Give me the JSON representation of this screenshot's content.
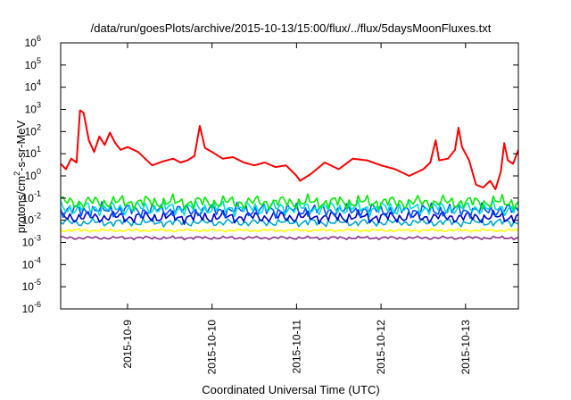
{
  "chart_data": {
    "type": "line",
    "title": "/data/run/goesPlots/archive/2015-10-13/15:00/flux/../flux/5daysMoonFluxes.txt",
    "xlabel": "Coordinated Universal Time (UTC)",
    "ylabel": {
      "base": "protons/cm",
      "sup": "2",
      "rest": "-s-sr-MeV"
    },
    "y_scale": "log",
    "ylim": [
      1e-06,
      1000000.0
    ],
    "xlim": [
      "2015-10-08T05:00",
      "2015-10-13T15:00"
    ],
    "grid": false,
    "legend": "none",
    "x_ticks": [
      {
        "value": "2015-10-09",
        "label": "2015-10-9"
      },
      {
        "value": "2015-10-10",
        "label": "2015-10-10"
      },
      {
        "value": "2015-10-11",
        "label": "2015-10-11"
      },
      {
        "value": "2015-10-12",
        "label": "2015-10-12"
      },
      {
        "value": "2015-10-13",
        "label": "2015-10-13"
      }
    ],
    "y_ticks": [
      {
        "exp": -6,
        "base": "10",
        "sup": "-6"
      },
      {
        "exp": -5,
        "base": "10",
        "sup": "-5"
      },
      {
        "exp": -4,
        "base": "10",
        "sup": "-4"
      },
      {
        "exp": -3,
        "base": "10",
        "sup": "-3"
      },
      {
        "exp": -2,
        "base": "10",
        "sup": "-2"
      },
      {
        "exp": -1,
        "base": "10",
        "sup": "-1"
      },
      {
        "exp": 0,
        "base": "10",
        "sup": "0"
      },
      {
        "exp": 1,
        "base": "10",
        "sup": "1"
      },
      {
        "exp": 2,
        "base": "10",
        "sup": "2"
      },
      {
        "exp": 3,
        "base": "10",
        "sup": "3"
      },
      {
        "exp": 4,
        "base": "10",
        "sup": "4"
      },
      {
        "exp": 5,
        "base": "10",
        "sup": "5"
      },
      {
        "exp": 6,
        "base": "10",
        "sup": "6"
      }
    ],
    "series": [
      {
        "color": "#ff0000",
        "points": [
          [
            "2015-10-08T05:00",
            3.5
          ],
          [
            "2015-10-08T06:30",
            2.0
          ],
          [
            "2015-10-08T08:00",
            6.0
          ],
          [
            "2015-10-08T09:30",
            4.0
          ],
          [
            "2015-10-08T10:30",
            900
          ],
          [
            "2015-10-08T11:30",
            700
          ],
          [
            "2015-10-08T13:00",
            40
          ],
          [
            "2015-10-08T14:30",
            12
          ],
          [
            "2015-10-08T16:00",
            60
          ],
          [
            "2015-10-08T17:30",
            25
          ],
          [
            "2015-10-08T19:00",
            90
          ],
          [
            "2015-10-08T20:30",
            30
          ],
          [
            "2015-10-08T22:00",
            15
          ],
          [
            "2015-10-09T00:00",
            20
          ],
          [
            "2015-10-09T03:00",
            12
          ],
          [
            "2015-10-09T05:00",
            6.0
          ],
          [
            "2015-10-09T07:00",
            3.0
          ],
          [
            "2015-10-09T10:00",
            4.5
          ],
          [
            "2015-10-09T13:00",
            6.0
          ],
          [
            "2015-10-09T15:00",
            4.0
          ],
          [
            "2015-10-09T17:00",
            5.0
          ],
          [
            "2015-10-09T19:00",
            8.0
          ],
          [
            "2015-10-09T20:30",
            180
          ],
          [
            "2015-10-09T22:00",
            18
          ],
          [
            "2015-10-10T00:00",
            12
          ],
          [
            "2015-10-10T03:00",
            6.0
          ],
          [
            "2015-10-10T06:00",
            7.0
          ],
          [
            "2015-10-10T09:00",
            4.0
          ],
          [
            "2015-10-10T12:00",
            3.0
          ],
          [
            "2015-10-10T15:00",
            4.0
          ],
          [
            "2015-10-10T18:00",
            2.5
          ],
          [
            "2015-10-10T21:00",
            3.0
          ],
          [
            "2015-10-11T00:00",
            1.0
          ],
          [
            "2015-10-11T01:00",
            0.6
          ],
          [
            "2015-10-11T04:00",
            1.2
          ],
          [
            "2015-10-11T08:00",
            4.0
          ],
          [
            "2015-10-11T12:00",
            2.0
          ],
          [
            "2015-10-11T16:00",
            6.0
          ],
          [
            "2015-10-11T20:00",
            5.0
          ],
          [
            "2015-10-12T00:00",
            3.0
          ],
          [
            "2015-10-12T04:00",
            2.0
          ],
          [
            "2015-10-12T08:00",
            1.0
          ],
          [
            "2015-10-12T12:00",
            2.0
          ],
          [
            "2015-10-12T14:00",
            4.0
          ],
          [
            "2015-10-12T15:30",
            40
          ],
          [
            "2015-10-12T16:30",
            5.0
          ],
          [
            "2015-10-12T19:00",
            6.0
          ],
          [
            "2015-10-12T21:00",
            15
          ],
          [
            "2015-10-12T22:00",
            150
          ],
          [
            "2015-10-12T23:00",
            20
          ],
          [
            "2015-10-13T01:00",
            5.0
          ],
          [
            "2015-10-13T03:00",
            0.4
          ],
          [
            "2015-10-13T05:00",
            0.3
          ],
          [
            "2015-10-13T07:00",
            0.6
          ],
          [
            "2015-10-13T08:30",
            0.25
          ],
          [
            "2015-10-13T10:00",
            1.5
          ],
          [
            "2015-10-13T11:00",
            30
          ],
          [
            "2015-10-13T12:00",
            5.0
          ],
          [
            "2015-10-13T13:30",
            3.5
          ],
          [
            "2015-10-13T15:00",
            15
          ]
        ]
      },
      {
        "color": "#00ee00",
        "level": 0.065,
        "spread": 0.35,
        "phase": 0.3
      },
      {
        "color": "#00dddd",
        "level": 0.035,
        "spread": 0.35,
        "phase": 1.1
      },
      {
        "color": "#0055ff",
        "level": 0.028,
        "spread": 0.35,
        "phase": 2.3
      },
      {
        "color": "#0000cc",
        "level": 0.014,
        "spread": 0.3,
        "phase": 0.7
      },
      {
        "color": "#00aacc",
        "level": 0.008,
        "spread": 0.2,
        "phase": 3.1
      },
      {
        "color": "#ffff00",
        "level": 0.0035,
        "spread": 0.08,
        "phase": 1.9
      },
      {
        "color": "#8b2f8b",
        "level": 0.0016,
        "spread": 0.08,
        "phase": 0.4
      }
    ]
  }
}
